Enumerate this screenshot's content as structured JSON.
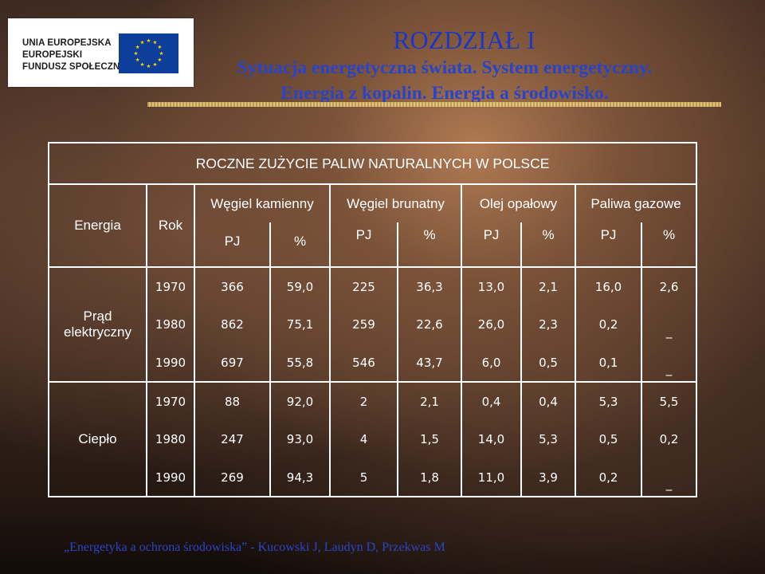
{
  "logo": {
    "lines": [
      "UNIA EUROPEJSKA",
      "EUROPEJSKI",
      "FUNDUSZ SPOŁECZNY"
    ],
    "flag_color": "#0d3e99",
    "star_color": "#ffd200",
    "icon": "eu-flag-icon"
  },
  "header": {
    "title": "ROZDZIAŁ I",
    "subtitle_line1": "Sytuacja energetyczna świata. System energetyczny.",
    "subtitle_line2": "Energia z kopalin. Energia a środowisko."
  },
  "table": {
    "caption": "ROCZNE ZUŻYCIE PALIW NATURALNYCH W POLSCE",
    "col_energia": "Energia",
    "col_rok": "Rok",
    "fuels": [
      {
        "name": "Węgiel kamienny",
        "unit1": "PJ",
        "unit2": "%"
      },
      {
        "name": "Węgiel brunatny",
        "unit1": "PJ",
        "unit2": "%"
      },
      {
        "name": "Olej opałowy",
        "unit1": "PJ",
        "unit2": "%"
      },
      {
        "name": "Paliwa gazowe",
        "unit1": "PJ",
        "unit2": "%"
      }
    ],
    "groups": [
      {
        "label_line1": "Prąd",
        "label_line2": "elektryczny",
        "rows": [
          [
            "1970",
            "366",
            "59,0",
            "225",
            "36,3",
            "13,0",
            "2,1",
            "16,0",
            "2,6"
          ],
          [
            "1980",
            "862",
            "75,1",
            "259",
            "22,6",
            "26,0",
            "2,3",
            "0,2",
            "_"
          ],
          [
            "1990",
            "697",
            "55,8",
            "546",
            "43,7",
            "6,0",
            "0,5",
            "0,1",
            "_"
          ]
        ]
      },
      {
        "label_line1": "Ciepło",
        "label_line2": "",
        "rows": [
          [
            "1970",
            "88",
            "92,0",
            "2",
            "2,1",
            "0,4",
            "0,4",
            "5,3",
            "5,5"
          ],
          [
            "1980",
            "247",
            "93,0",
            "4",
            "1,5",
            "14,0",
            "5,3",
            "0,5",
            "0,2"
          ],
          [
            "1990",
            "269",
            "94,3",
            "5",
            "1,8",
            "11,0",
            "3,9",
            "0,2",
            "_"
          ]
        ]
      }
    ]
  },
  "footer": {
    "citation": "„Energetyka a ochrona środowiska” - Kucowski J, Laudyn D, Przekwas M"
  }
}
